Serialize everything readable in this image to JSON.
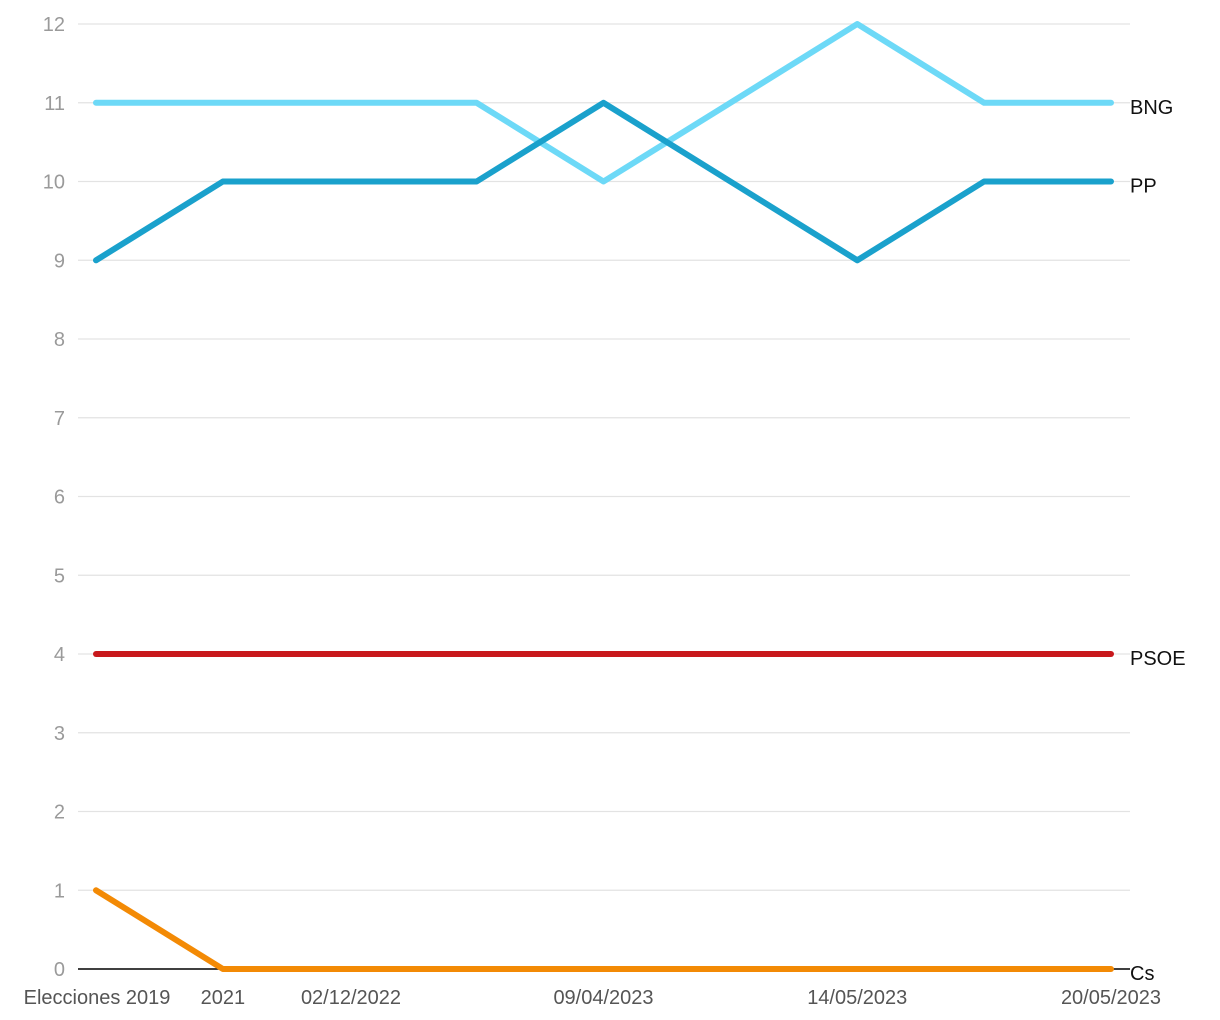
{
  "chart_data": {
    "type": "line",
    "x": [
      "Elecciones 2019",
      "2021",
      "02/12/2022",
      "",
      "09/04/2023",
      "",
      "14/05/2023",
      "",
      "20/05/2023"
    ],
    "x_tick_labels": [
      "Elecciones 2019",
      "2021",
      "02/12/2022",
      "09/04/2023",
      "14/05/2023",
      "20/05/2023"
    ],
    "ylim": [
      0,
      12
    ],
    "y_ticks": [
      "0",
      "1",
      "2",
      "3",
      "4",
      "5",
      "6",
      "7",
      "8",
      "9",
      "10",
      "11",
      "12"
    ],
    "grid": true,
    "legend": "direct labels at line ends (right)",
    "series": [
      {
        "name": "BNG",
        "color": "#6dd9f7",
        "values": [
          11,
          11,
          11,
          11,
          10,
          11,
          12,
          11,
          11
        ]
      },
      {
        "name": "PP",
        "color": "#1aa1cc",
        "values": [
          9,
          10,
          10,
          10,
          11,
          10,
          9,
          10,
          10
        ]
      },
      {
        "name": "PSOE",
        "color": "#c8181c",
        "values": [
          4,
          4,
          4,
          4,
          4,
          4,
          4,
          4,
          4
        ]
      },
      {
        "name": "Cs",
        "color": "#f38a05",
        "values": [
          1,
          0,
          0,
          0,
          0,
          0,
          0,
          0,
          0
        ]
      }
    ]
  }
}
